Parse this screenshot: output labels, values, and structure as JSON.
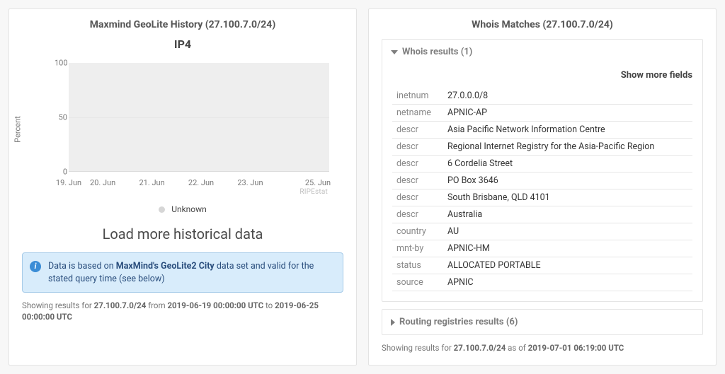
{
  "left": {
    "title": "Maxmind GeoLite History (27.100.7.0/24)",
    "chart": {
      "type": "area",
      "title": "IP4",
      "ylabel": "Percent",
      "ylim": [
        0,
        100
      ],
      "yticks": [
        0,
        50,
        100
      ],
      "xticks": [
        "19. Jun",
        "20. Jun",
        "21. Jun",
        "22. Jun",
        "23. Jun",
        "25. Jun"
      ],
      "plot_bg": "#eeeeee",
      "grid_color": "#e6e6e6",
      "watermark": "RIPEstat",
      "legend": [
        {
          "label": "Unknown",
          "color": "#d6d6d6"
        }
      ]
    },
    "load_more_label": "Load more historical data",
    "info": {
      "prefix": "Data is based on ",
      "bold": "MaxMind's GeoLite2 City",
      "suffix": " data set and valid for the stated query time (see below)"
    },
    "footer": {
      "p1": "Showing results for ",
      "b1": "27.100.7.0/24",
      "p2": " from ",
      "b2": "2019-06-19 00:00:00 UTC",
      "p3": " to ",
      "b3": "2019-06-25 00:00:00 UTC"
    }
  },
  "right": {
    "title": "Whois Matches (27.100.7.0/24)",
    "whois_header": "Whois results (1)",
    "show_more_label": "Show more fields",
    "rows": [
      {
        "k": "inetnum",
        "v": "27.0.0.0/8"
      },
      {
        "k": "netname",
        "v": "APNIC-AP"
      },
      {
        "k": "descr",
        "v": "Asia Pacific Network Information Centre"
      },
      {
        "k": "descr",
        "v": "Regional Internet Registry for the Asia-Pacific Region"
      },
      {
        "k": "descr",
        "v": "6 Cordelia Street"
      },
      {
        "k": "descr",
        "v": "PO Box 3646"
      },
      {
        "k": "descr",
        "v": "South Brisbane, QLD 4101"
      },
      {
        "k": "descr",
        "v": "Australia"
      },
      {
        "k": "country",
        "v": "AU"
      },
      {
        "k": "mnt-by",
        "v": "APNIC-HM"
      },
      {
        "k": "status",
        "v": "ALLOCATED PORTABLE"
      },
      {
        "k": "source",
        "v": "APNIC"
      }
    ],
    "routing_header": "Routing registries results (6)",
    "footer": {
      "p1": "Showing results for ",
      "b1": "27.100.7.0/24",
      "p2": " as of ",
      "b2": "2019-07-01 06:19:00 UTC"
    }
  }
}
